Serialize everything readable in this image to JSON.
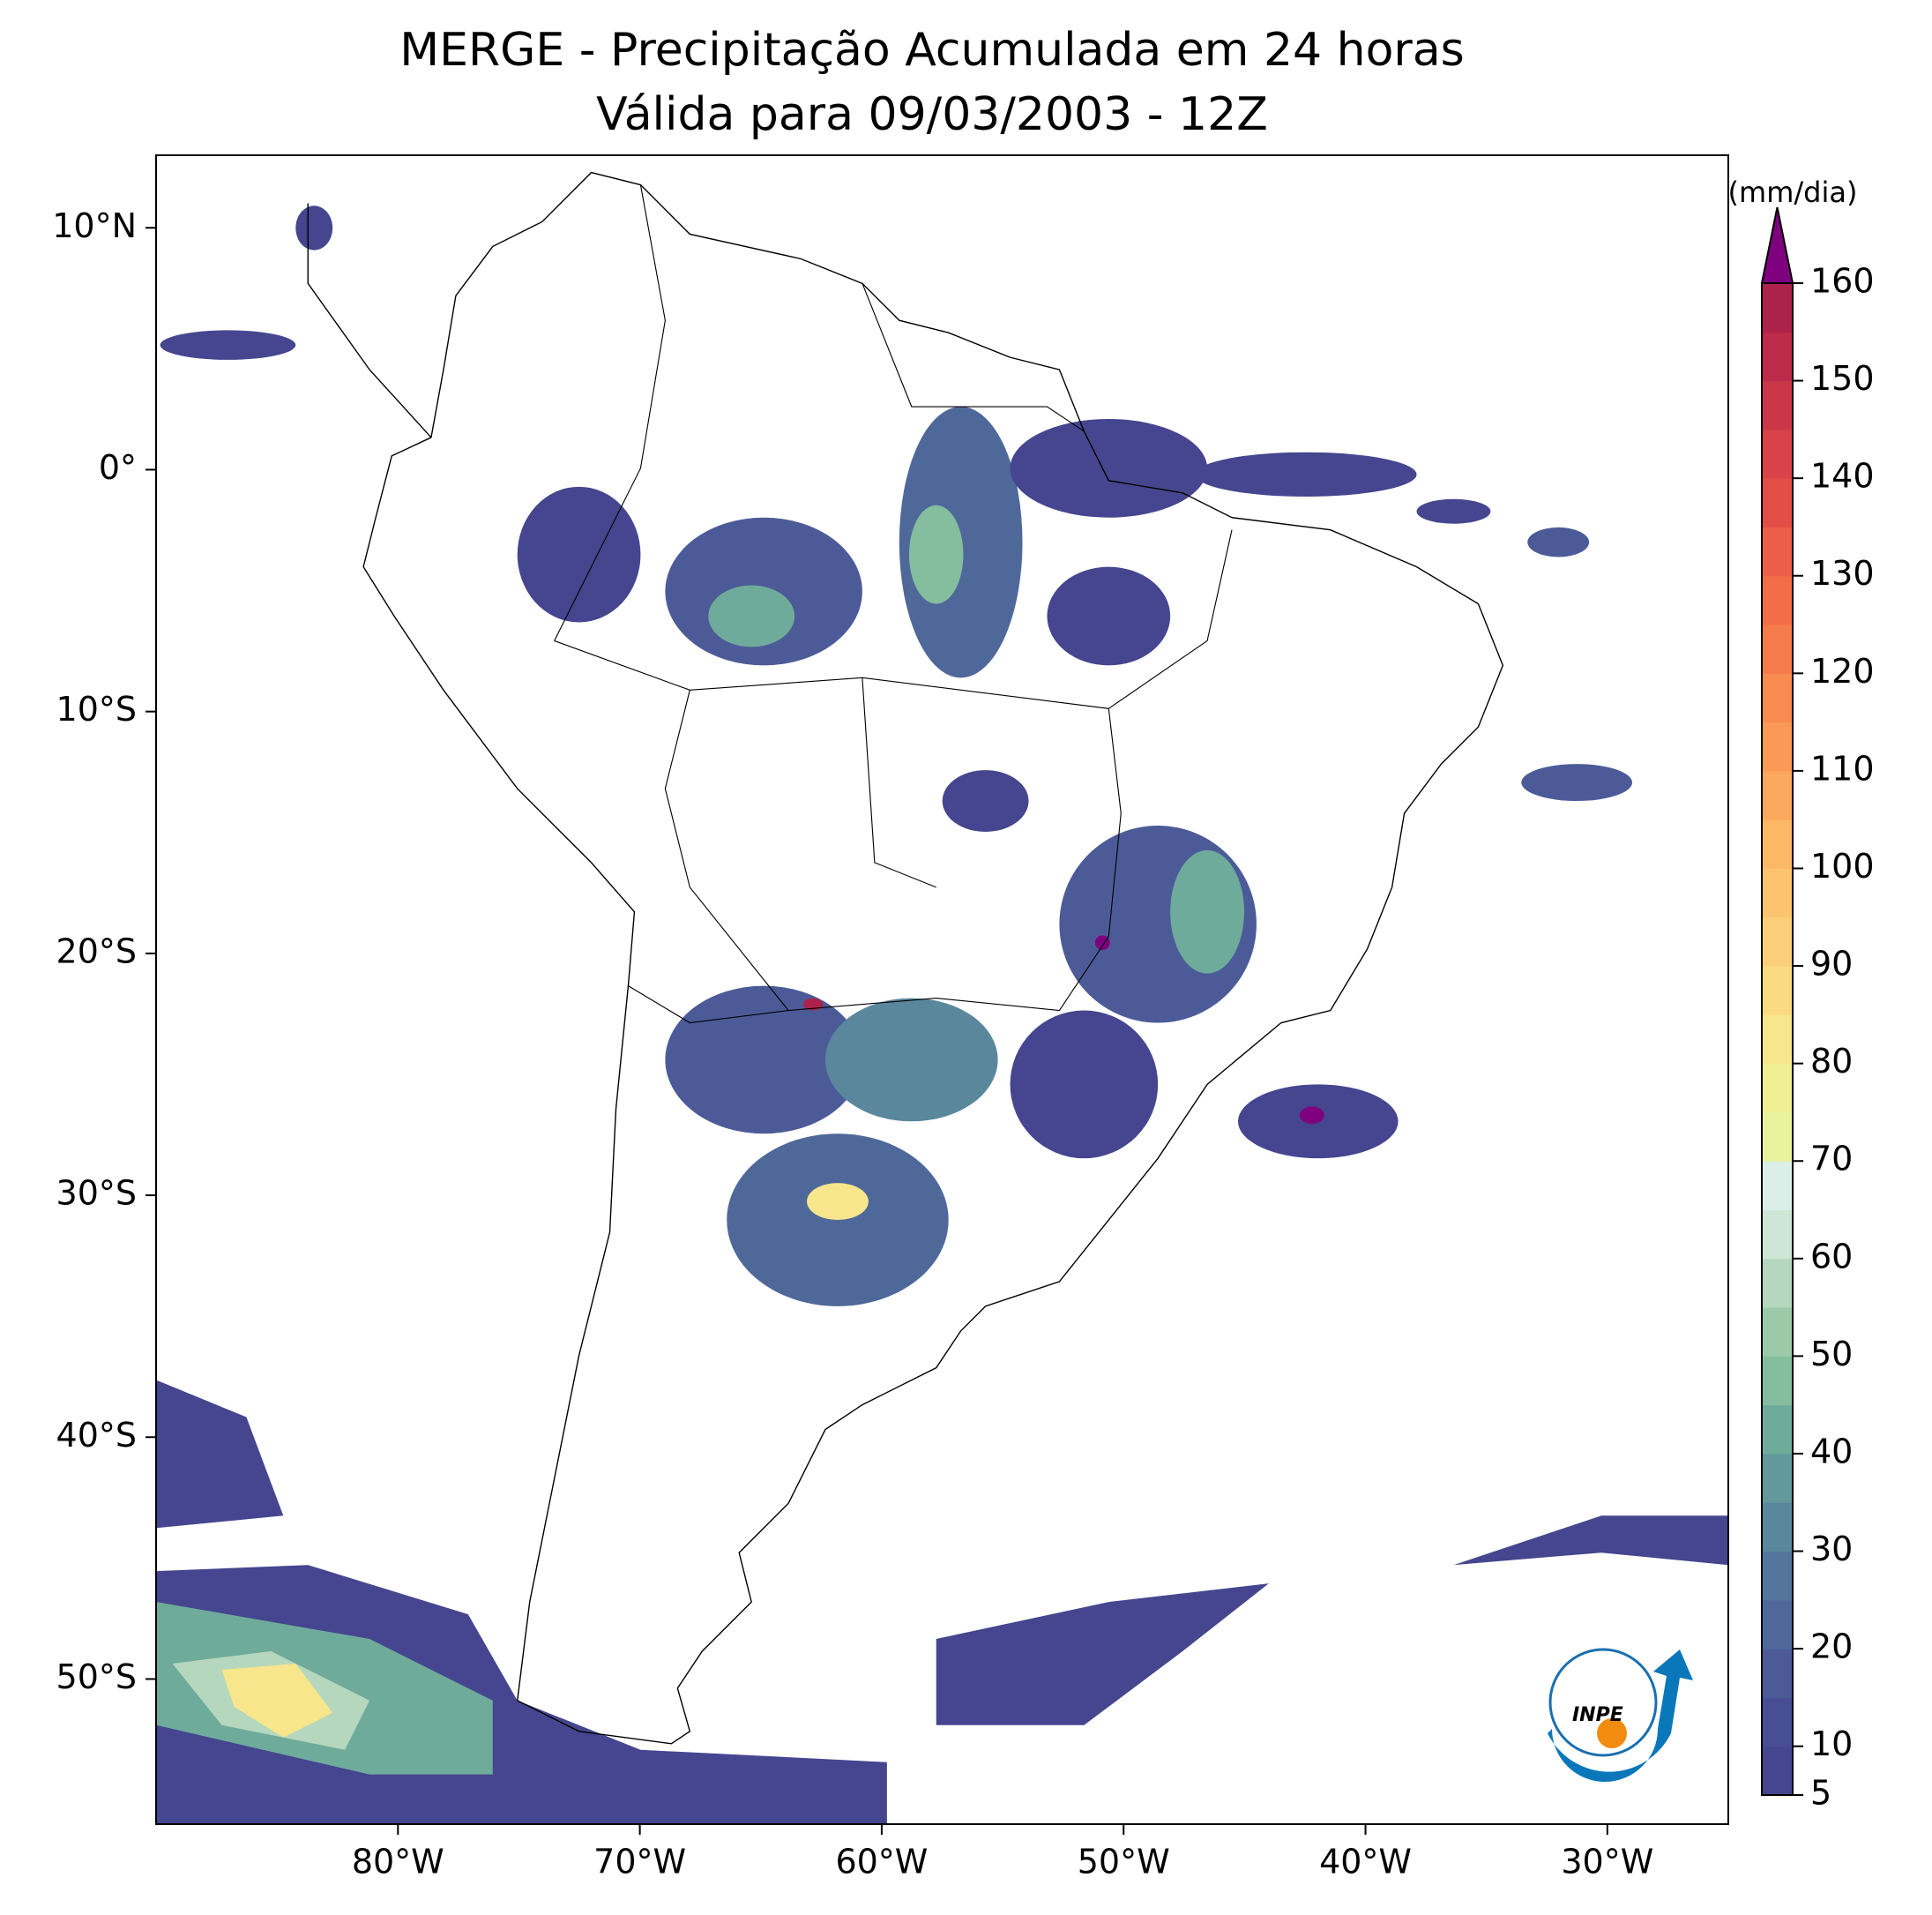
{
  "title": [
    "MERGE - Precipitação Acumulada em 24 horas",
    "Válida para 09/03/2003 - 12Z"
  ],
  "map": {
    "type": "map",
    "xlim": [
      -90,
      -25
    ],
    "ylim": [
      -56,
      13
    ],
    "xticks": [
      {
        "value": -80,
        "label": "80°W"
      },
      {
        "value": -70,
        "label": "70°W"
      },
      {
        "value": -60,
        "label": "60°W"
      },
      {
        "value": -50,
        "label": "50°W"
      },
      {
        "value": -40,
        "label": "40°W"
      },
      {
        "value": -30,
        "label": "30°W"
      }
    ],
    "yticks": [
      {
        "value": 10,
        "label": "10°N"
      },
      {
        "value": 0,
        "label": "0°"
      },
      {
        "value": -10,
        "label": "10°S"
      },
      {
        "value": -20,
        "label": "20°S"
      },
      {
        "value": -30,
        "label": "30°S"
      },
      {
        "value": -40,
        "label": "40°S"
      },
      {
        "value": -50,
        "label": "50°S"
      }
    ]
  },
  "colorbar": {
    "label": "(mm/dia)",
    "levels": [
      5,
      10,
      15,
      20,
      25,
      30,
      35,
      40,
      45,
      50,
      55,
      60,
      65,
      70,
      75,
      80,
      85,
      90,
      95,
      100,
      105,
      110,
      115,
      120,
      125,
      130,
      135,
      140,
      145,
      150,
      155,
      160
    ],
    "colors": [
      "#45468f",
      "#484e94",
      "#4c5b98",
      "#4f689a",
      "#54769c",
      "#5a879c",
      "#63989c",
      "#6fab9b",
      "#85bd9f",
      "#9ccaa9",
      "#b5d7bd",
      "#cde6d6",
      "#dbeee8",
      "#e9f39d",
      "#f1ef93",
      "#f7e68b",
      "#fadb82",
      "#fcce7a",
      "#fdc470",
      "#fdb866",
      "#fca85e",
      "#fb9a57",
      "#f98b51",
      "#f67c4b",
      "#f26d48",
      "#ec5e47",
      "#e34f47",
      "#d84248",
      "#cb3649",
      "#bc2b4a",
      "#ac224b"
    ],
    "extend_color": "#7f007f",
    "ticks": [
      5,
      10,
      20,
      30,
      40,
      50,
      60,
      70,
      80,
      90,
      100,
      110,
      120,
      130,
      140,
      150,
      160
    ]
  },
  "logo": "INPE"
}
